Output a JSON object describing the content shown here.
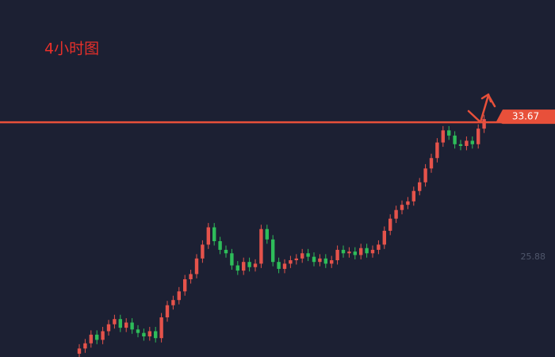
{
  "chart_data": {
    "type": "candlestick",
    "title": "4小时图",
    "open": [
      20.3,
      20.6,
      20.9,
      21.4,
      21.1,
      21.6,
      22.0,
      22.3,
      21.8,
      22.1,
      21.7,
      21.5,
      21.3,
      21.6,
      21.2,
      22.4,
      23.1,
      23.4,
      23.9,
      24.6,
      24.9,
      25.8,
      26.6,
      27.6,
      26.8,
      26.3,
      26.1,
      25.4,
      25.1,
      25.6,
      25.3,
      25.5,
      27.5,
      26.9,
      25.6,
      25.2,
      25.5,
      25.7,
      25.8,
      26.1,
      25.9,
      25.6,
      25.8,
      25.5,
      25.7,
      26.3,
      26.1,
      26.2,
      26.0,
      26.4,
      26.1,
      26.3,
      26.6,
      27.4,
      28.1,
      28.6,
      28.9,
      29.1,
      29.7,
      30.2,
      31.0,
      31.6,
      32.5,
      33.2,
      32.9,
      32.4,
      32.3,
      32.6,
      32.4,
      33.3
    ],
    "high": [
      20.85,
      21.15,
      21.65,
      21.65,
      21.85,
      22.25,
      22.55,
      22.55,
      22.35,
      22.35,
      21.95,
      21.75,
      21.85,
      21.85,
      22.65,
      23.35,
      23.65,
      24.15,
      24.85,
      25.15,
      26.05,
      26.85,
      27.85,
      27.85,
      27.05,
      26.55,
      26.35,
      25.65,
      25.85,
      25.85,
      25.75,
      27.75,
      27.75,
      27.15,
      25.85,
      25.75,
      25.95,
      26.05,
      26.35,
      26.35,
      26.15,
      26.05,
      26.05,
      25.95,
      26.55,
      26.55,
      26.45,
      26.45,
      26.65,
      26.65,
      26.55,
      26.85,
      27.65,
      28.35,
      28.85,
      29.15,
      29.35,
      29.95,
      30.45,
      31.25,
      31.85,
      32.75,
      33.45,
      33.45,
      33.15,
      32.65,
      32.85,
      32.85,
      33.55,
      34.1
    ],
    "low": [
      20.05,
      20.35,
      20.65,
      20.85,
      20.85,
      21.35,
      21.75,
      21.55,
      21.55,
      21.45,
      21.25,
      21.05,
      21.05,
      20.95,
      20.95,
      22.15,
      22.85,
      23.15,
      23.65,
      24.35,
      24.65,
      25.55,
      26.35,
      26.55,
      26.05,
      25.85,
      25.15,
      24.85,
      24.85,
      25.05,
      25.05,
      25.25,
      26.65,
      25.35,
      24.95,
      24.95,
      25.25,
      25.45,
      25.55,
      25.65,
      25.35,
      25.35,
      25.25,
      25.25,
      25.45,
      25.85,
      25.85,
      25.75,
      25.75,
      25.85,
      25.85,
      26.05,
      26.35,
      27.15,
      27.85,
      28.35,
      28.65,
      28.85,
      29.45,
      29.95,
      30.75,
      31.35,
      32.25,
      32.65,
      32.15,
      32.05,
      32.05,
      32.15,
      32.15,
      33.05
    ],
    "close": [
      20.6,
      20.9,
      21.4,
      21.1,
      21.6,
      22.0,
      22.3,
      21.8,
      22.1,
      21.7,
      21.5,
      21.3,
      21.6,
      21.2,
      22.4,
      23.1,
      23.4,
      23.9,
      24.6,
      24.9,
      25.8,
      26.6,
      27.6,
      26.8,
      26.3,
      26.1,
      25.4,
      25.1,
      25.6,
      25.3,
      25.5,
      27.5,
      26.9,
      25.6,
      25.2,
      25.5,
      25.7,
      25.8,
      26.1,
      25.9,
      25.6,
      25.8,
      25.5,
      25.7,
      26.3,
      26.1,
      26.2,
      26.0,
      26.4,
      26.1,
      26.3,
      26.6,
      27.4,
      28.1,
      28.6,
      28.9,
      29.1,
      29.7,
      30.2,
      31.0,
      31.6,
      32.5,
      33.2,
      32.9,
      32.4,
      32.3,
      32.6,
      32.4,
      33.3,
      33.85
    ],
    "up_color": "#e5534b",
    "down_color": "#2ebd5a",
    "ylim": [
      20.11,
      40.73
    ],
    "yticks": [
      25.88
    ],
    "price_line": 33.67,
    "price_line_color": "#e8503a"
  }
}
